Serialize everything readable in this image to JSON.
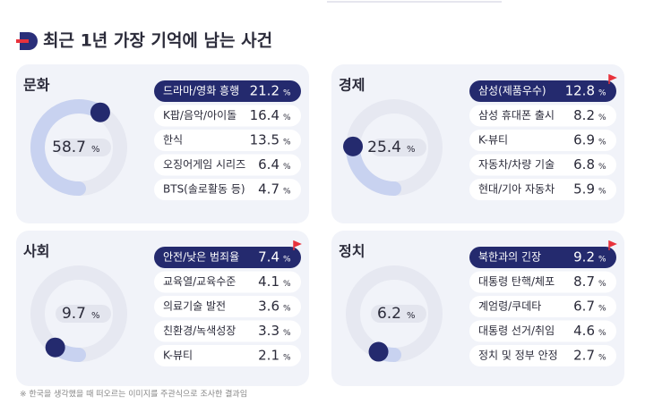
{
  "title": "최근 1년 가장 기억에 남는 사건",
  "unit": "%",
  "footnote": "※ 한국을 생각했을 때 떠오르는 이미지를 주관식으로 조사한 결과임",
  "panels": [
    {
      "name": "문화",
      "total": 58.7,
      "items": [
        {
          "label": "드라마/영화 흥행",
          "value": 21.2
        },
        {
          "label": "K팝/음악/아이돌",
          "value": 16.4
        },
        {
          "label": "한식",
          "value": 13.5
        },
        {
          "label": "오징어게임 시리즈",
          "value": 6.4
        },
        {
          "label": "BTS(솔로활동 등)",
          "value": 4.7
        }
      ]
    },
    {
      "name": "경제",
      "total": 25.4,
      "items": [
        {
          "label": "삼성(제품우수)",
          "value": 12.8
        },
        {
          "label": "삼성 휴대폰 출시",
          "value": 8.2
        },
        {
          "label": "K-뷰티",
          "value": 6.9
        },
        {
          "label": "자동차/차량 기술",
          "value": 6.8
        },
        {
          "label": "현대/기아 자동차",
          "value": 5.9
        }
      ]
    },
    {
      "name": "사회",
      "total": 9.7,
      "items": [
        {
          "label": "안전/낮은 범죄율",
          "value": 7.4
        },
        {
          "label": "교육열/교육수준",
          "value": 4.1
        },
        {
          "label": "의료기술 발전",
          "value": 3.6
        },
        {
          "label": "친환경/녹색성장",
          "value": 3.3
        },
        {
          "label": "K-뷰티",
          "value": 2.1
        }
      ]
    },
    {
      "name": "정치",
      "total": 6.2,
      "items": [
        {
          "label": "북한과의 긴장",
          "value": 9.2
        },
        {
          "label": "대통령 탄핵/체포",
          "value": 8.7
        },
        {
          "label": "계엄령/쿠데타",
          "value": 6.7
        },
        {
          "label": "대통령 선거/취임",
          "value": 4.6
        },
        {
          "label": "정치 및 정부 안정",
          "value": 2.7
        }
      ]
    }
  ]
}
